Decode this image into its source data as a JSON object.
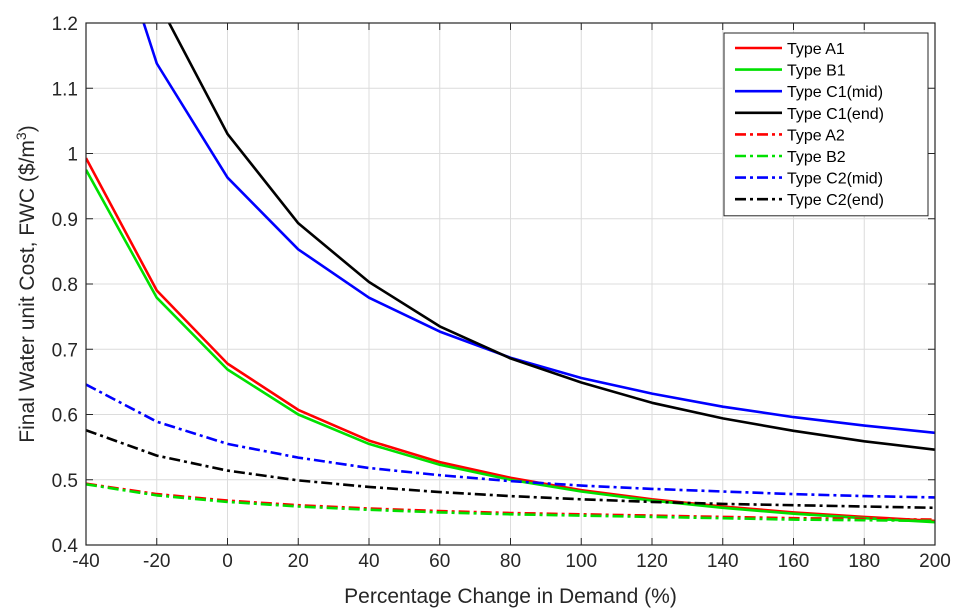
{
  "chart_data": {
    "type": "line",
    "xlabel": "Percentage Change in Demand (%)",
    "ylabel": "Final Water unit Cost, FWC ($/m",
    "ylabel_sup": "3",
    "ylabel_tail": ")",
    "xlim": [
      -40,
      200
    ],
    "ylim": [
      0.4,
      1.2
    ],
    "grid": true,
    "legend_position": "top-right",
    "xticks": [
      -40,
      -20,
      0,
      20,
      40,
      60,
      80,
      100,
      120,
      140,
      160,
      180,
      200
    ],
    "yticks": [
      0.4,
      0.5,
      0.6,
      0.7,
      0.8,
      0.9,
      1.0,
      1.1,
      1.2
    ],
    "xtick_labels": [
      "-40",
      "-20",
      "0",
      "20",
      "40",
      "60",
      "80",
      "100",
      "120",
      "140",
      "160",
      "180",
      "200"
    ],
    "ytick_labels": [
      "0.4",
      "0.5",
      "0.6",
      "0.7",
      "0.8",
      "0.9",
      "1",
      "1.1",
      "1.2"
    ],
    "series": [
      {
        "name": "Type A1",
        "color": "#ff0000",
        "dash": "solid",
        "x": [
          -40,
          -20,
          0,
          20,
          40,
          60,
          80,
          100,
          120,
          140,
          160,
          180,
          200
        ],
        "y": [
          0.993,
          0.79,
          0.678,
          0.607,
          0.56,
          0.527,
          0.503,
          0.484,
          0.47,
          0.459,
          0.45,
          0.443,
          0.437
        ]
      },
      {
        "name": "Type B1",
        "color": "#00e000",
        "dash": "solid",
        "x": [
          -40,
          -20,
          0,
          20,
          40,
          60,
          80,
          100,
          120,
          140,
          160,
          180,
          200
        ],
        "y": [
          0.975,
          0.779,
          0.669,
          0.6,
          0.555,
          0.523,
          0.5,
          0.482,
          0.468,
          0.457,
          0.448,
          0.441,
          0.435
        ]
      },
      {
        "name": "Type C1(mid)",
        "color": "#0000ff",
        "dash": "solid",
        "x": [
          -24,
          -20,
          0,
          20,
          40,
          60,
          80,
          100,
          120,
          140,
          160,
          180,
          200
        ],
        "y": [
          1.205,
          1.138,
          0.963,
          0.853,
          0.779,
          0.727,
          0.687,
          0.656,
          0.632,
          0.612,
          0.596,
          0.583,
          0.572
        ]
      },
      {
        "name": "Type C1(end)",
        "color": "#000000",
        "dash": "solid",
        "x": [
          -17,
          0,
          20,
          40,
          60,
          80,
          100,
          120,
          140,
          160,
          180,
          200
        ],
        "y": [
          1.205,
          1.03,
          0.893,
          0.803,
          0.735,
          0.686,
          0.649,
          0.618,
          0.594,
          0.575,
          0.559,
          0.546
        ]
      },
      {
        "name": "Type A2",
        "color": "#ff0000",
        "dash": "dashdot",
        "x": [
          -40,
          -20,
          0,
          20,
          40,
          60,
          80,
          100,
          120,
          140,
          160,
          180,
          200
        ],
        "y": [
          0.494,
          0.478,
          0.468,
          0.461,
          0.456,
          0.452,
          0.449,
          0.447,
          0.445,
          0.443,
          0.441,
          0.44,
          0.439
        ]
      },
      {
        "name": "Type B2",
        "color": "#00e000",
        "dash": "dashdot",
        "x": [
          -40,
          -20,
          0,
          20,
          40,
          60,
          80,
          100,
          120,
          140,
          160,
          180,
          200
        ],
        "y": [
          0.493,
          0.476,
          0.466,
          0.459,
          0.454,
          0.45,
          0.447,
          0.445,
          0.443,
          0.441,
          0.439,
          0.438,
          0.437
        ]
      },
      {
        "name": "Type C2(mid)",
        "color": "#0000ff",
        "dash": "dashdot",
        "x": [
          -40,
          -20,
          0,
          20,
          40,
          60,
          80,
          100,
          120,
          140,
          160,
          180,
          200
        ],
        "y": [
          0.646,
          0.589,
          0.555,
          0.534,
          0.518,
          0.507,
          0.498,
          0.491,
          0.486,
          0.482,
          0.478,
          0.475,
          0.473
        ]
      },
      {
        "name": "Type C2(end)",
        "color": "#000000",
        "dash": "dashdot",
        "x": [
          -40,
          -20,
          0,
          20,
          40,
          60,
          80,
          100,
          120,
          140,
          160,
          180,
          200
        ],
        "y": [
          0.576,
          0.537,
          0.514,
          0.499,
          0.489,
          0.481,
          0.475,
          0.47,
          0.466,
          0.463,
          0.461,
          0.459,
          0.457
        ]
      }
    ]
  }
}
